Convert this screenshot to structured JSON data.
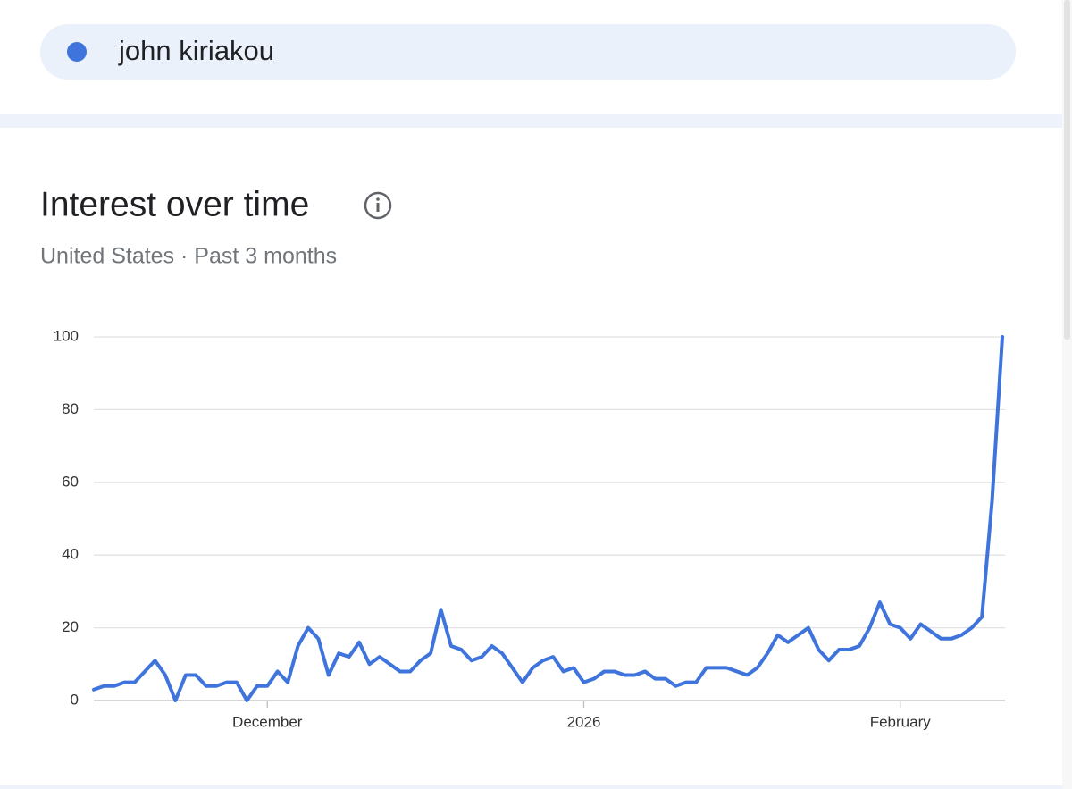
{
  "chart_data": {
    "type": "line",
    "title": "Interest over time",
    "subtitle": "United States · Past 3 months",
    "categories": [
      null,
      null,
      null,
      null,
      null,
      null,
      null,
      null,
      null,
      null,
      null,
      null,
      null,
      null,
      null,
      null,
      null,
      "December",
      null,
      null,
      null,
      null,
      null,
      null,
      null,
      null,
      null,
      null,
      null,
      null,
      null,
      null,
      null,
      null,
      null,
      null,
      null,
      null,
      null,
      null,
      null,
      null,
      null,
      null,
      null,
      null,
      null,
      null,
      "2026",
      null,
      null,
      null,
      null,
      null,
      null,
      null,
      null,
      null,
      null,
      null,
      null,
      null,
      null,
      null,
      null,
      null,
      null,
      null,
      null,
      null,
      null,
      null,
      null,
      null,
      null,
      null,
      null,
      null,
      null,
      "February",
      null,
      null,
      null,
      null,
      null,
      null,
      null,
      null,
      null,
      null
    ],
    "series": [
      {
        "name": "john kiriakou",
        "color": "#3f74dc",
        "values": [
          3,
          4,
          4,
          5,
          5,
          8,
          11,
          7,
          0,
          7,
          7,
          4,
          4,
          5,
          5,
          0,
          4,
          4,
          8,
          5,
          15,
          20,
          17,
          7,
          13,
          12,
          16,
          10,
          12,
          10,
          8,
          8,
          11,
          13,
          25,
          15,
          14,
          11,
          12,
          15,
          13,
          9,
          5,
          9,
          11,
          12,
          8,
          9,
          5,
          6,
          8,
          8,
          7,
          7,
          8,
          6,
          6,
          4,
          5,
          5,
          9,
          9,
          9,
          8,
          7,
          9,
          13,
          18,
          16,
          18,
          20,
          14,
          11,
          14,
          14,
          15,
          20,
          27,
          21,
          20,
          17,
          21,
          19,
          17,
          17,
          18,
          20,
          23,
          55,
          100
        ]
      }
    ],
    "ylim": [
      0,
      100
    ],
    "yticks": [
      0,
      20,
      40,
      60,
      80,
      100
    ],
    "grid": true
  }
}
